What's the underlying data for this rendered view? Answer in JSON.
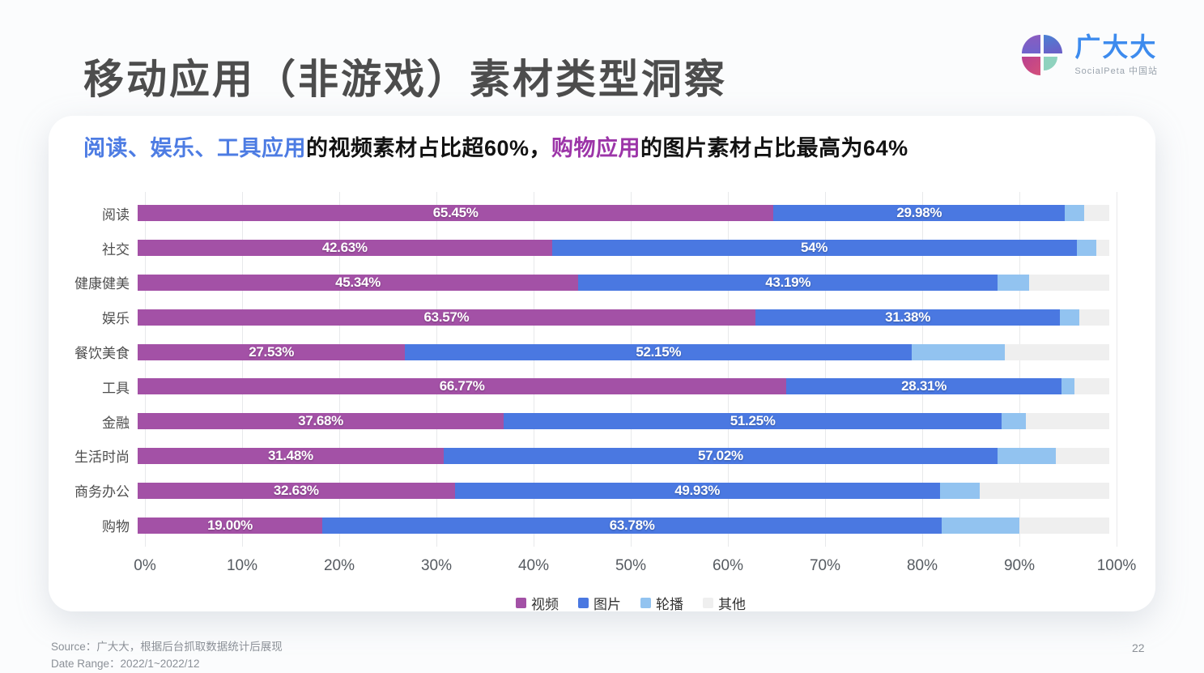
{
  "page": {
    "title": "移动应用（非游戏）素材类型洞察",
    "page_number": "22"
  },
  "logo": {
    "name": "广大大",
    "subtext": "SocialPeta 中国站"
  },
  "subtitle": {
    "part1_blue": "阅读、娱乐、工具应用",
    "part2": "的视频素材占比超60%，",
    "part3_purple": "购物应用",
    "part4": "的图片素材占比最高为64%"
  },
  "source": {
    "line1": "Source：广大大，根据后台抓取数据统计后展现",
    "line2": "Date Range：2022/1~2022/12"
  },
  "colors": {
    "video": "#a351a6",
    "image": "#4a78e1",
    "carousel": "#92c3f0",
    "other": "#efefef",
    "accent_blue": "#4d7ce3",
    "accent_purple": "#9c35a8"
  },
  "chart_data": {
    "type": "bar",
    "orientation": "horizontal",
    "stacked": true,
    "xlim": [
      0,
      100
    ],
    "grid": true,
    "legend_position": "bottom",
    "x_ticks": [
      "0%",
      "10%",
      "20%",
      "30%",
      "40%",
      "50%",
      "60%",
      "70%",
      "80%",
      "90%",
      "100%"
    ],
    "categories": [
      "阅读",
      "社交",
      "健康健美",
      "娱乐",
      "餐饮美食",
      "工具",
      "金融",
      "生活时尚",
      "商务办公",
      "购物"
    ],
    "series": [
      {
        "name": "视频",
        "color": "#a351a6",
        "values": [
          65.45,
          42.63,
          45.34,
          63.57,
          27.53,
          66.77,
          37.68,
          31.48,
          32.63,
          19.0
        ],
        "labels": [
          "65.45%",
          "42.63%",
          "45.34%",
          "63.57%",
          "27.53%",
          "66.77%",
          "37.68%",
          "31.48%",
          "32.63%",
          "19.00%"
        ]
      },
      {
        "name": "图片",
        "color": "#4a78e1",
        "values": [
          29.98,
          54,
          43.19,
          31.38,
          52.15,
          28.31,
          51.25,
          57.02,
          49.93,
          63.78
        ],
        "labels": [
          "29.98%",
          "54%",
          "43.19%",
          "31.38%",
          "52.15%",
          "28.31%",
          "51.25%",
          "57.02%",
          "49.93%",
          "63.78%"
        ]
      },
      {
        "name": "轮播",
        "color": "#92c3f0",
        "values": [
          1.95,
          2.0,
          3.2,
          2.0,
          9.6,
          1.35,
          2.5,
          6.0,
          4.1,
          8.0
        ],
        "labels": [
          "",
          "",
          "",
          "",
          "",
          "",
          "",
          "",
          "",
          ""
        ]
      },
      {
        "name": "其他",
        "color": "#efefef",
        "values": [
          2.62,
          1.37,
          8.27,
          3.05,
          10.72,
          3.57,
          8.57,
          5.5,
          13.34,
          9.22
        ],
        "labels": [
          "",
          "",
          "",
          "",
          "",
          "",
          "",
          "",
          "",
          ""
        ]
      }
    ],
    "legend": [
      "视频",
      "图片",
      "轮播",
      "其他"
    ]
  }
}
